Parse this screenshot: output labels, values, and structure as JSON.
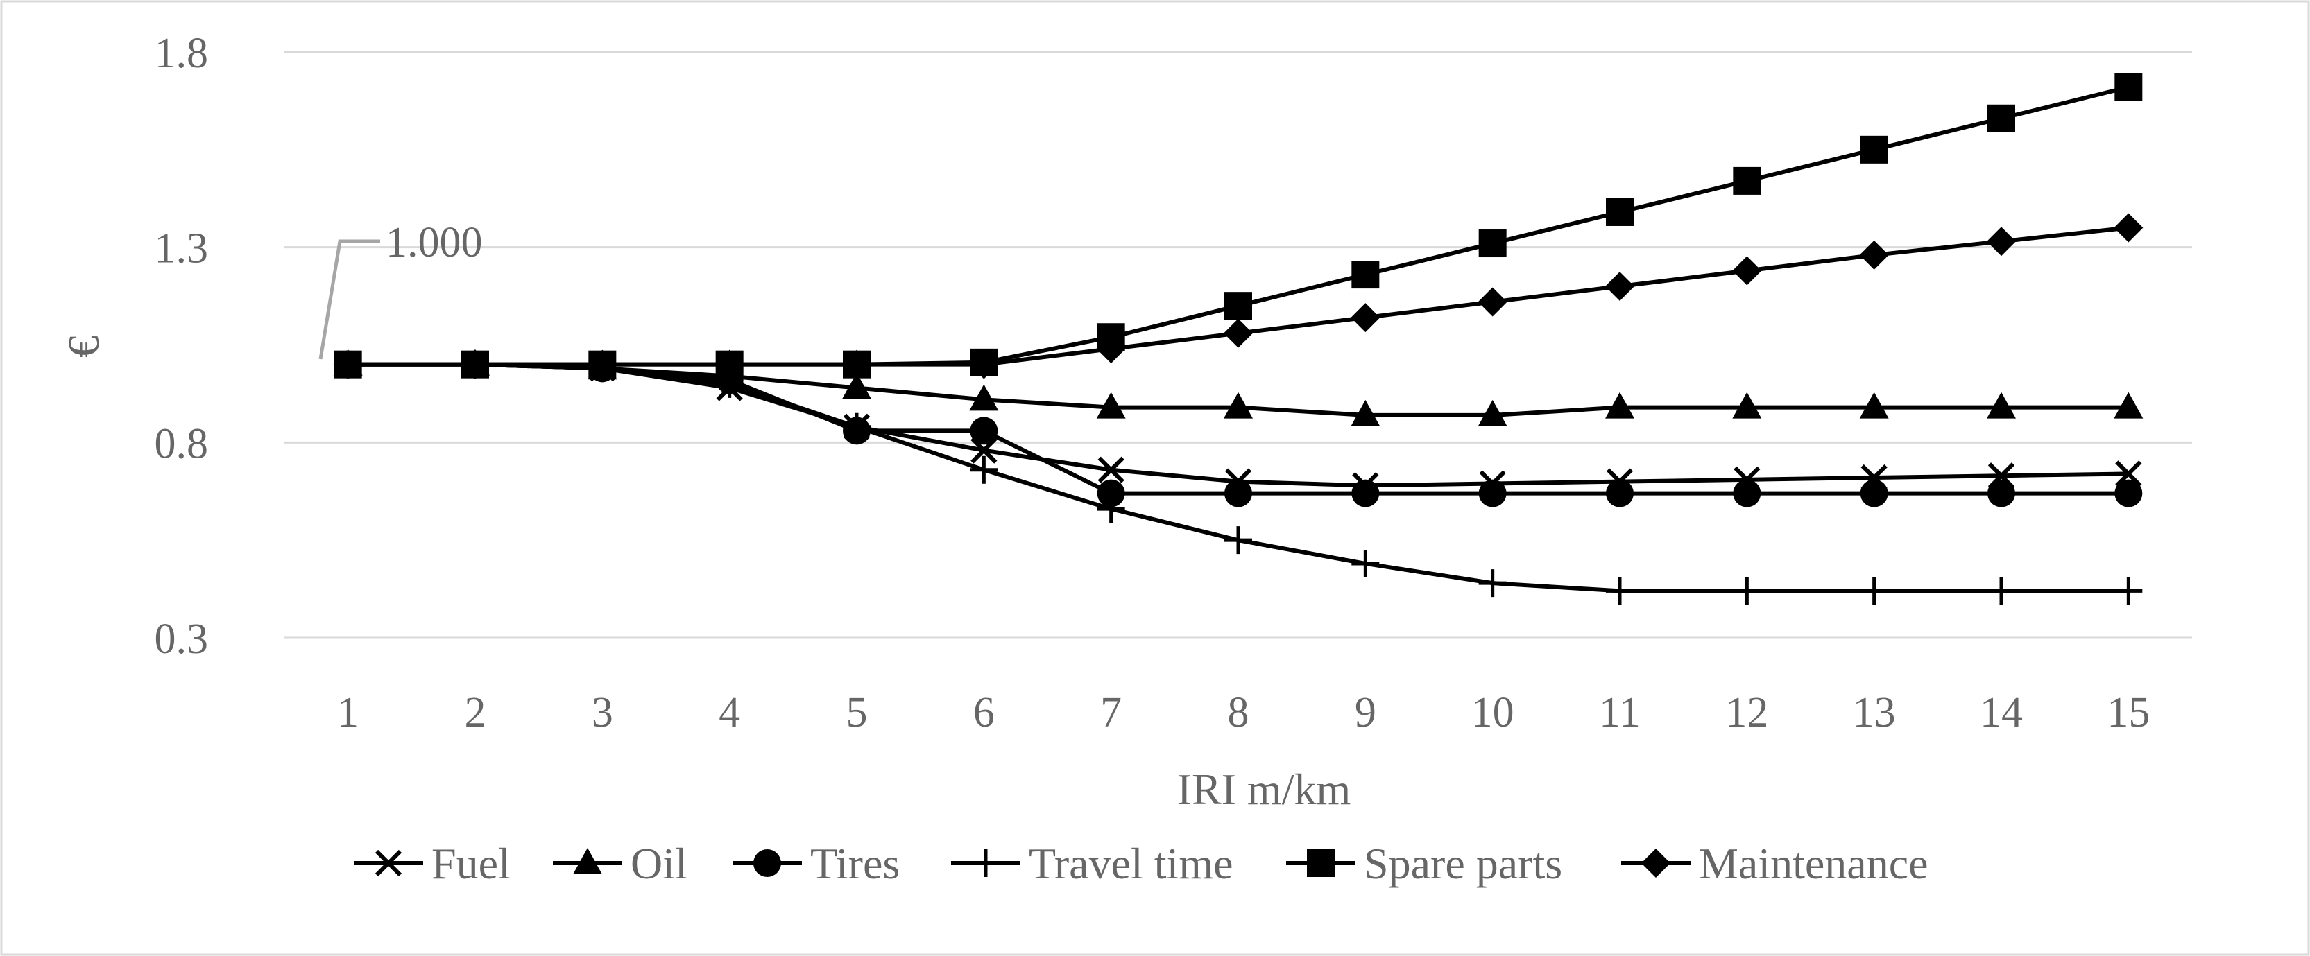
{
  "chart_data": {
    "type": "line",
    "title": "",
    "xlabel": "IRI m/km",
    "ylabel": "€",
    "x": [
      1,
      2,
      3,
      4,
      5,
      6,
      7,
      8,
      9,
      10,
      11,
      12,
      13,
      14,
      15
    ],
    "ylim": [
      0.3,
      1.8
    ],
    "yticks": [
      "0.3",
      "0.8",
      "1.3",
      "1.8"
    ],
    "grid": "horizontal",
    "legend_position": "bottom",
    "annotation": {
      "text": "1.000",
      "x": 1,
      "y": 1.0
    },
    "colors": {
      "series": "#000000",
      "text": "#666666",
      "grid": "#d9d9d9",
      "border": "#d9d9d9"
    },
    "series": [
      {
        "name": "Fuel",
        "marker": "x-icon",
        "values": [
          1.0,
          1.0,
          0.99,
          0.94,
          0.84,
          0.78,
          0.73,
          0.7,
          0.69,
          0.695,
          0.7,
          0.705,
          0.71,
          0.715,
          0.72
        ]
      },
      {
        "name": "Oil",
        "marker": "triangle-icon",
        "values": [
          1.0,
          1.0,
          0.99,
          0.97,
          0.94,
          0.91,
          0.89,
          0.89,
          0.87,
          0.87,
          0.89,
          0.89,
          0.89,
          0.89,
          0.89
        ]
      },
      {
        "name": "Tires",
        "marker": "circle-icon",
        "values": [
          1.0,
          1.0,
          0.99,
          0.96,
          0.83,
          0.83,
          0.67,
          0.67,
          0.67,
          0.67,
          0.67,
          0.67,
          0.67,
          0.67,
          0.67
        ]
      },
      {
        "name": "Travel time",
        "marker": "plus-icon",
        "values": [
          1.0,
          1.0,
          0.99,
          0.95,
          0.84,
          0.73,
          0.63,
          0.55,
          0.49,
          0.44,
          0.42,
          0.42,
          0.42,
          0.42,
          0.42
        ]
      },
      {
        "name": "Spare parts",
        "marker": "square-icon",
        "values": [
          1.0,
          1.0,
          1.0,
          1.0,
          1.0,
          1.005,
          1.07,
          1.15,
          1.23,
          1.31,
          1.39,
          1.47,
          1.55,
          1.63,
          1.71
        ]
      },
      {
        "name": "Maintenance",
        "marker": "diamond-icon",
        "values": [
          1.0,
          1.0,
          1.0,
          1.0,
          1.0,
          1.0,
          1.04,
          1.08,
          1.12,
          1.16,
          1.2,
          1.24,
          1.28,
          1.315,
          1.35
        ]
      }
    ]
  }
}
